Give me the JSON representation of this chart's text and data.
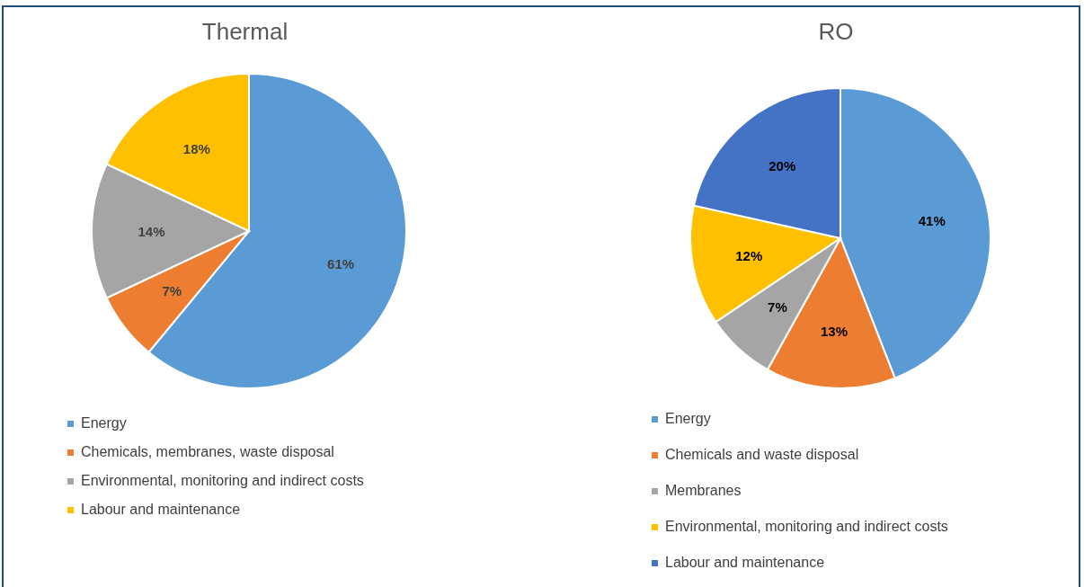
{
  "chart_data": [
    {
      "type": "pie",
      "title": "Thermal",
      "categories": [
        "Energy",
        "Chemicals, membranes, waste disposal",
        "Environmental, monitoring and indirect costs",
        "Labour and maintenance"
      ],
      "values": [
        61,
        7,
        14,
        18
      ],
      "colors": [
        "#5b9bd5",
        "#ed7d31",
        "#a5a5a5",
        "#ffc000"
      ],
      "value_labels": [
        "61%",
        "7%",
        "14%",
        "18%"
      ],
      "legend": "bottom"
    },
    {
      "type": "pie",
      "title": "RO",
      "categories": [
        "Energy",
        "Chemicals and waste disposal",
        "Membranes",
        "Environmental, monitoring and indirect costs",
        "Labour and maintenance"
      ],
      "values": [
        41,
        13,
        7,
        12,
        20
      ],
      "colors": [
        "#5b9bd5",
        "#ed7d31",
        "#a5a5a5",
        "#ffc000",
        "#4472c4"
      ],
      "value_labels": [
        "41%",
        "13%",
        "7%",
        "12%",
        "20%"
      ],
      "legend": "bottom"
    }
  ]
}
